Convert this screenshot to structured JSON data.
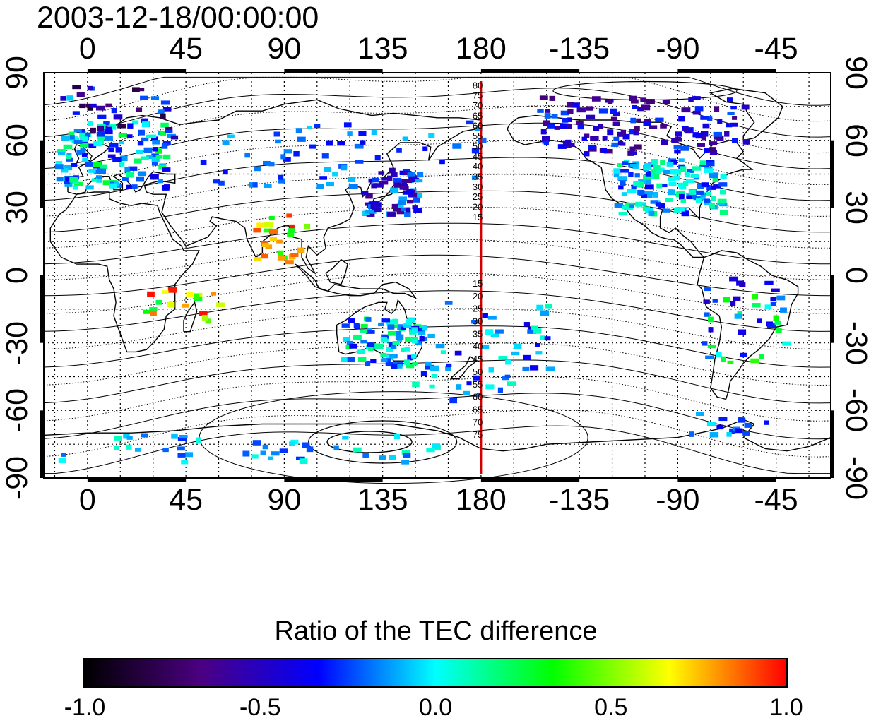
{
  "title": "2003-12-18/00:00:00",
  "axes": {
    "lon_ticks": [
      "0",
      "45",
      "90",
      "135",
      "180",
      "-135",
      "-90",
      "-45"
    ],
    "lat_ticks": [
      "90",
      "60",
      "30",
      "0",
      "-30",
      "-60",
      "-90"
    ]
  },
  "map": {
    "lon_range": [
      -20,
      340
    ],
    "lat_range": [
      -90,
      90
    ],
    "grid": "dotted every 15 degrees",
    "highlight_meridian": 180,
    "highlight_color": "#d40000",
    "meridian_labels_north": [
      "80",
      "75",
      "70",
      "65",
      "60",
      "55",
      "50",
      "45",
      "40",
      "35",
      "30",
      "25",
      "20",
      "15"
    ],
    "meridian_labels_south": [
      "15",
      "20",
      "25",
      "30",
      "35",
      "40",
      "45",
      "50",
      "55",
      "60",
      "65",
      "70",
      "75"
    ]
  },
  "colorbar": {
    "title": "Ratio of the TEC difference",
    "range": [
      -1.0,
      1.0
    ],
    "ticks": [
      "-1.0",
      "-0.5",
      "0.0",
      "0.5",
      "1.0"
    ],
    "colors": [
      "#000000",
      "#4b0082",
      "#0000ff",
      "#00ffff",
      "#00ff00",
      "#ffff00",
      "#ff0000"
    ]
  }
}
